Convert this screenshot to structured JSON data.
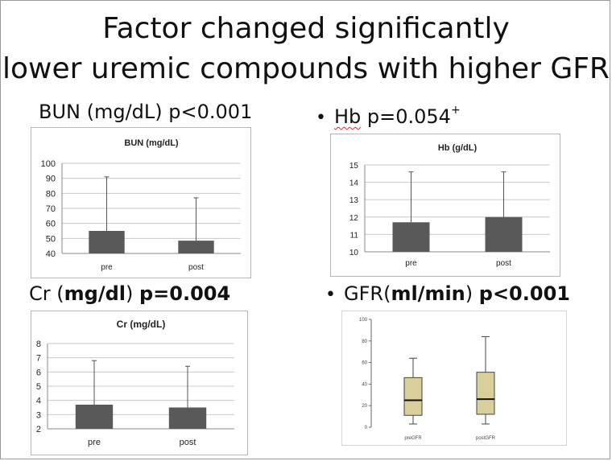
{
  "slide": {
    "title_line1": "Factor changed significantly",
    "title_line2": "lower uremic compounds with higher GFR"
  },
  "headings": {
    "bun": {
      "label": "BUN (mg/dL) ",
      "p": "p<0.001"
    },
    "hb": {
      "bullet": "•",
      "label": "Hb",
      "p": " p=0.054",
      "sup": "+"
    },
    "cr": {
      "label": "Cr (",
      "unit": "mg/dl",
      "close": ")  ",
      "p": "p=0.004"
    },
    "gfr": {
      "bullet": "•",
      "label": "GFR(",
      "unit": "ml/min",
      "close": ")  ",
      "p": "p<0.001"
    }
  },
  "colors": {
    "bar": "#595959",
    "box": "#d8cf9a",
    "grid": "#c8c8c8"
  },
  "chart_data": [
    {
      "type": "bar",
      "title": "BUN (mg/dL)",
      "categories": [
        "pre",
        "post"
      ],
      "values": [
        55,
        48.5
      ],
      "error_upper": [
        91,
        77
      ],
      "ylim": [
        40,
        100
      ],
      "yticks": [
        40,
        50,
        60,
        70,
        80,
        90,
        100
      ],
      "grid": true
    },
    {
      "type": "bar",
      "title": "Hb (g/dL)",
      "categories": [
        "pre",
        "post"
      ],
      "values": [
        11.7,
        12.0
      ],
      "error_upper": [
        14.6,
        14.6
      ],
      "ylim": [
        10,
        15
      ],
      "yticks": [
        10,
        11,
        12,
        13,
        14,
        15
      ],
      "grid": true
    },
    {
      "type": "bar",
      "title": "Cr (mg/dL)",
      "categories": [
        "pre",
        "post"
      ],
      "values": [
        3.7,
        3.5
      ],
      "error_upper": [
        6.8,
        6.4
      ],
      "ylim": [
        2,
        8
      ],
      "yticks": [
        2,
        3,
        4,
        5,
        6,
        7,
        8
      ],
      "grid": true
    },
    {
      "type": "box",
      "title": "",
      "categories": [
        "preGFR",
        "postGFR"
      ],
      "boxes": [
        {
          "min": 3,
          "q1": 11,
          "median": 25,
          "q3": 46,
          "max": 64
        },
        {
          "min": 3,
          "q1": 12,
          "median": 26,
          "q3": 51,
          "max": 84
        }
      ],
      "ylim": [
        0,
        100
      ],
      "yticks": [
        0,
        20,
        40,
        60,
        80,
        100
      ],
      "grid": false
    }
  ]
}
